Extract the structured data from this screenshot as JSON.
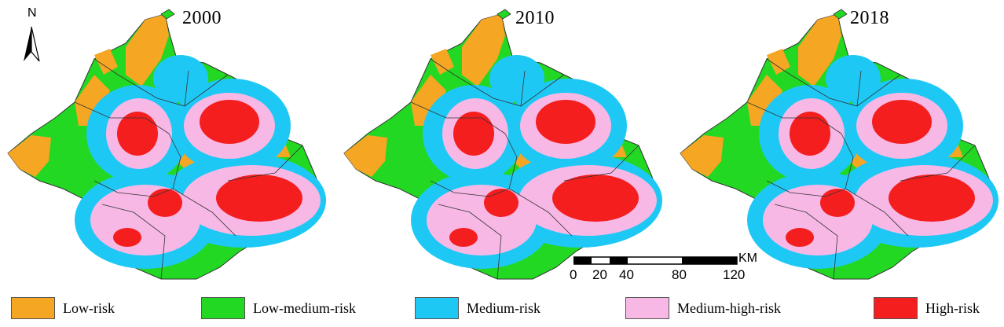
{
  "maps": [
    {
      "year": "2000"
    },
    {
      "year": "2010"
    },
    {
      "year": "2018"
    }
  ],
  "north_arrow": {
    "label": "N"
  },
  "scale_bar": {
    "unit": "KM",
    "ticks": [
      "0",
      "20",
      "40",
      "80",
      "120"
    ]
  },
  "legend": [
    {
      "label": "Low-risk",
      "color": "#f5a623"
    },
    {
      "label": "Low-medium-risk",
      "color": "#22d822"
    },
    {
      "label": "Medium-risk",
      "color": "#1ec8f5"
    },
    {
      "label": "Medium-high-risk",
      "color": "#f7b8e6"
    },
    {
      "label": "High-risk",
      "color": "#f51e1e"
    }
  ]
}
